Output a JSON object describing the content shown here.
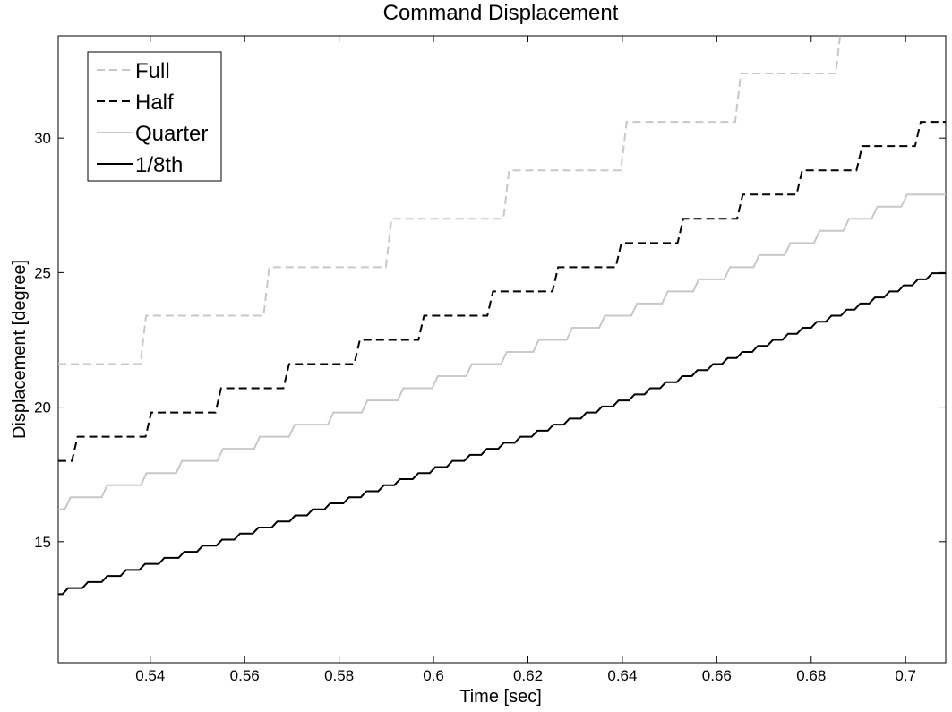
{
  "chart_data": {
    "type": "line",
    "title": "Command Displacement",
    "xlabel": "Time [sec]",
    "ylabel": "Displacement [degree]",
    "xlim": [
      0.5205,
      0.7085
    ],
    "ylim": [
      10.5,
      33.8
    ],
    "grid": false,
    "legend_position": "top-left",
    "xticks": [
      0.54,
      0.56,
      0.58,
      0.6,
      0.62,
      0.64,
      0.66,
      0.68,
      0.7
    ],
    "xtick_labels": [
      "0.54",
      "0.56",
      "0.58",
      "0.6",
      "0.62",
      "0.64",
      "0.66",
      "0.68",
      "0.7"
    ],
    "yticks": [
      15,
      20,
      25,
      30
    ],
    "ytick_labels": [
      "15",
      "20",
      "25",
      "30"
    ],
    "series": [
      {
        "name": "Full",
        "color": "#c8c8c8",
        "dash": "dashed",
        "step_times": [
          0.5205,
          0.5385,
          0.5646,
          0.5905,
          0.6154,
          0.6403,
          0.6645,
          0.6858
        ],
        "step_values": [
          21.6,
          23.4,
          25.2,
          27.0,
          28.8,
          30.6,
          32.4,
          34.2
        ]
      },
      {
        "name": "Half",
        "color": "#000000",
        "dash": "dashed",
        "step_times": [
          0.5205,
          0.524,
          0.5396,
          0.5544,
          0.5688,
          0.5838,
          0.5974,
          0.612,
          0.6258,
          0.6392,
          0.6523,
          0.6649,
          0.6775,
          0.6902,
          0.7026
        ],
        "step_values": [
          18.0,
          18.9,
          19.8,
          20.7,
          21.6,
          22.5,
          23.4,
          24.3,
          25.2,
          26.1,
          27.0,
          27.9,
          28.8,
          29.7,
          30.6
        ]
      },
      {
        "name": "Quarter",
        "color": "#c8c8c8",
        "dash": "solid",
        "step_times": [
          0.5205,
          0.5225,
          0.5303,
          0.5386,
          0.5461,
          0.5548,
          0.5626,
          0.57,
          0.5782,
          0.5854,
          0.593,
          0.6003,
          0.6075,
          0.6149,
          0.6217,
          0.6288,
          0.6357,
          0.6425,
          0.649,
          0.6556,
          0.6622,
          0.6684,
          0.675,
          0.6812,
          0.6874,
          0.6934,
          0.6997
        ],
        "step_values": [
          16.2,
          16.65,
          17.1,
          17.55,
          18.0,
          18.45,
          18.9,
          19.35,
          19.8,
          20.25,
          20.7,
          21.15,
          21.6,
          22.05,
          22.5,
          22.95,
          23.4,
          23.85,
          24.3,
          24.75,
          25.2,
          25.65,
          26.1,
          26.55,
          27.0,
          27.45,
          27.9
        ]
      },
      {
        "name": "1/8th",
        "color": "#000000",
        "dash": "solid",
        "step_times": [
          0.5205,
          0.522,
          0.5262,
          0.5303,
          0.5343,
          0.5383,
          0.5424,
          0.5466,
          0.5505,
          0.5546,
          0.5584,
          0.5623,
          0.5663,
          0.5701,
          0.5738,
          0.5775,
          0.5815,
          0.5852,
          0.5889,
          0.5923,
          0.5962,
          0.5998,
          0.6034,
          0.6071,
          0.6107,
          0.6143,
          0.6178,
          0.6214,
          0.6248,
          0.6282,
          0.6318,
          0.6351,
          0.6386,
          0.642,
          0.6453,
          0.6486,
          0.6521,
          0.6553,
          0.6586,
          0.6617,
          0.6648,
          0.6681,
          0.6713,
          0.6745,
          0.6776,
          0.6806,
          0.6837,
          0.6869,
          0.6898,
          0.6929,
          0.696,
          0.699,
          0.702,
          0.705
        ],
        "step_values": [
          13.05,
          13.275,
          13.5,
          13.725,
          13.95,
          14.175,
          14.4,
          14.625,
          14.85,
          15.075,
          15.3,
          15.525,
          15.75,
          15.975,
          16.2,
          16.425,
          16.65,
          16.875,
          17.1,
          17.325,
          17.55,
          17.775,
          18.0,
          18.225,
          18.45,
          18.675,
          18.9,
          19.125,
          19.35,
          19.575,
          19.8,
          20.025,
          20.25,
          20.475,
          20.7,
          20.925,
          21.15,
          21.375,
          21.6,
          21.825,
          22.05,
          22.275,
          22.5,
          22.725,
          22.95,
          23.175,
          23.4,
          23.625,
          23.85,
          24.075,
          24.3,
          24.525,
          24.75,
          24.975
        ]
      }
    ]
  }
}
